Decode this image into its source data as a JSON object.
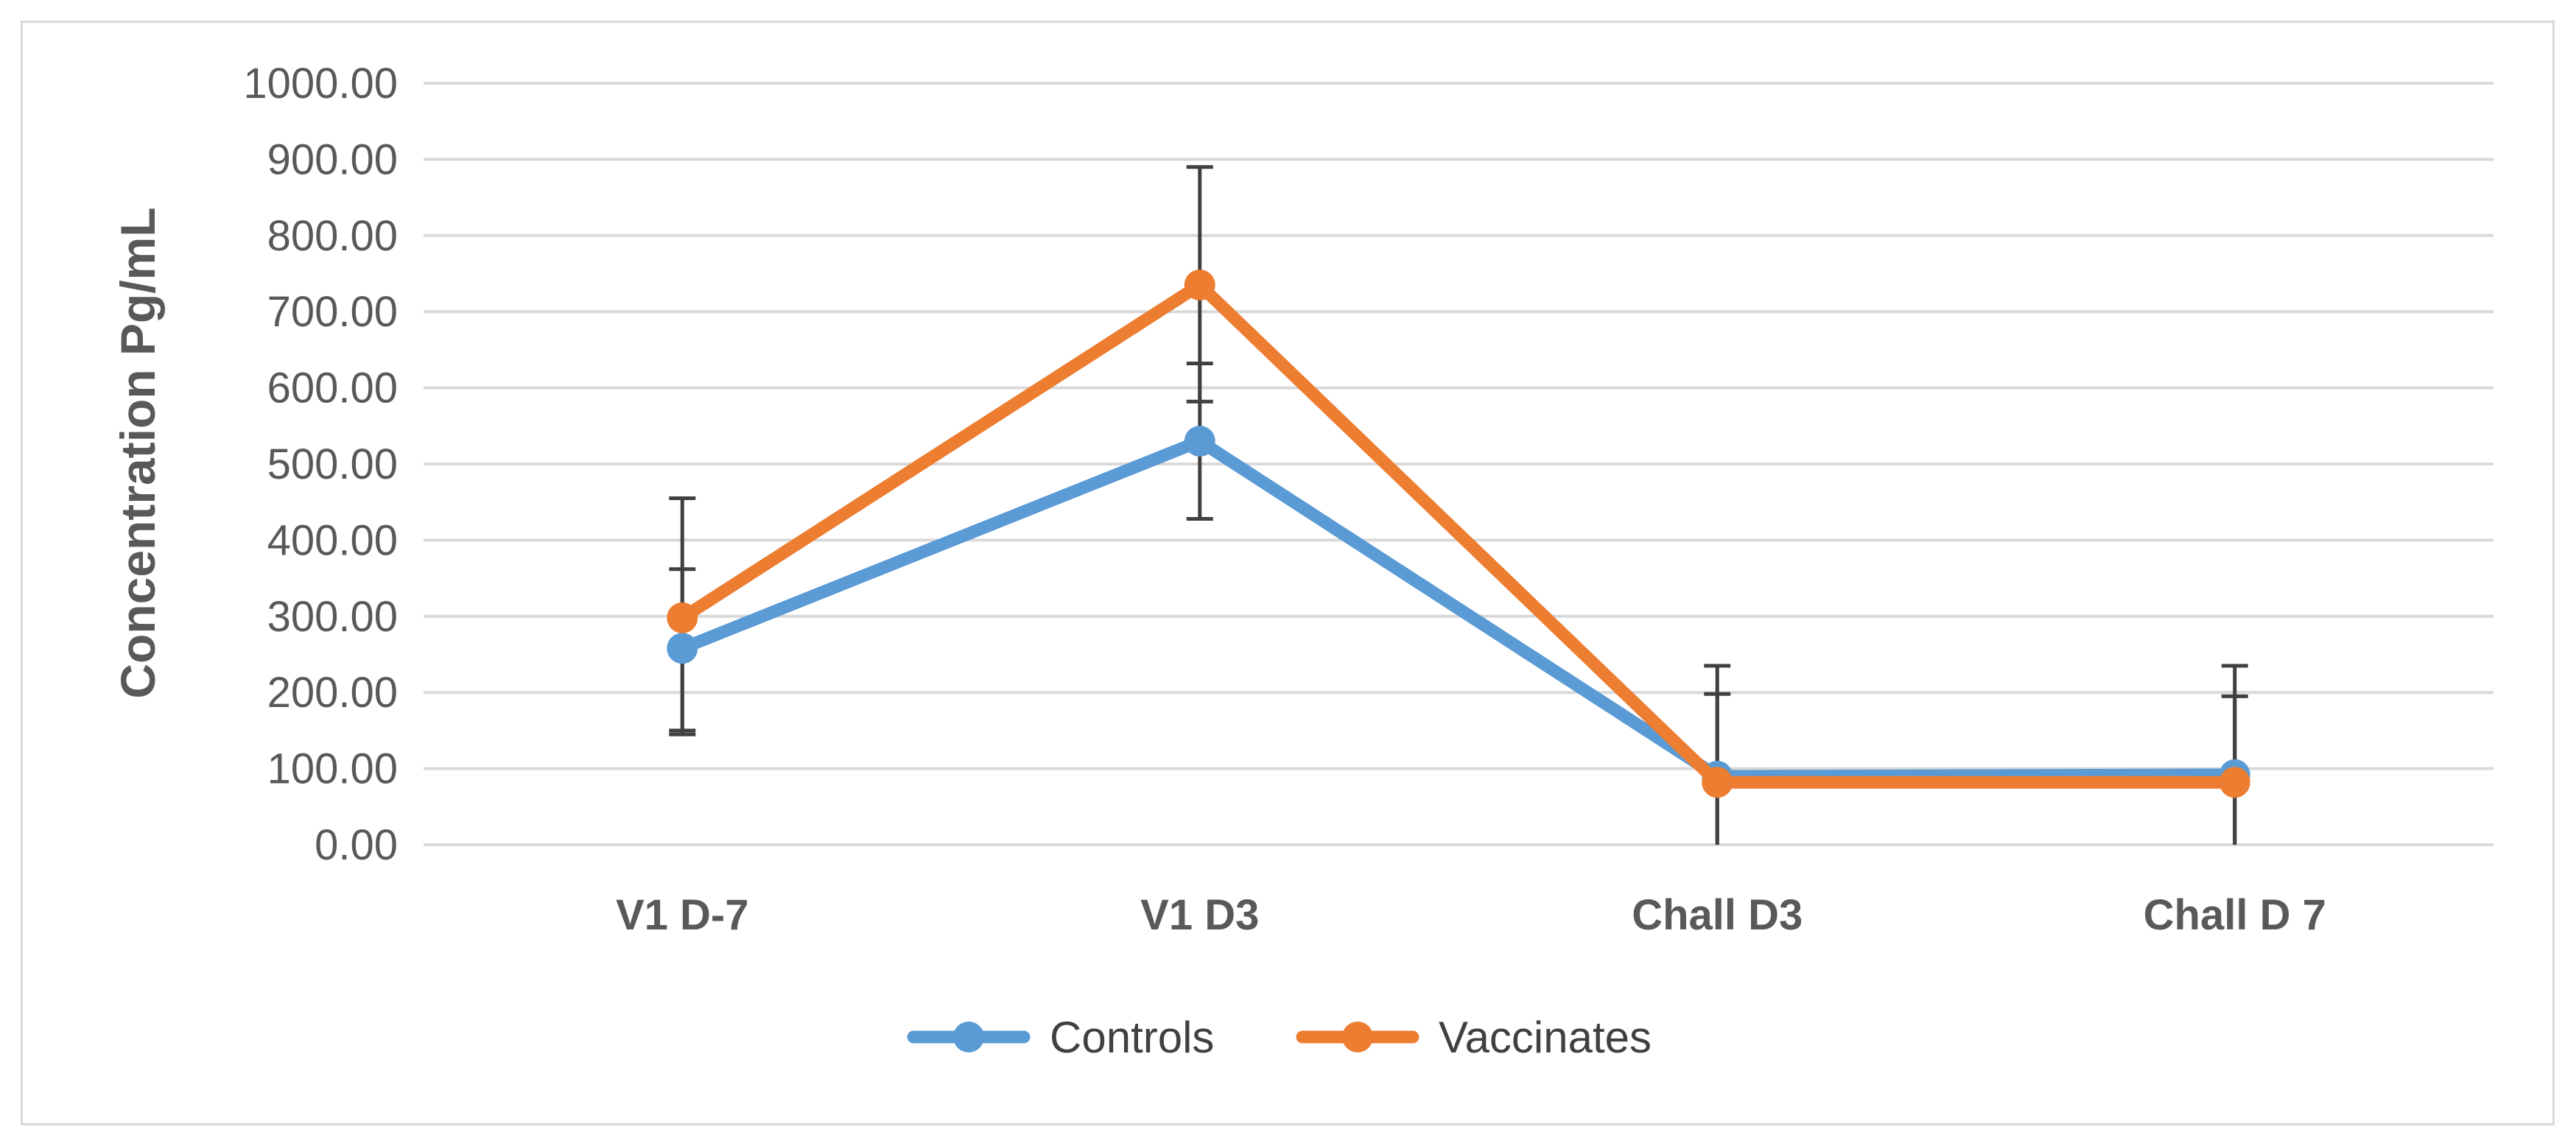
{
  "chart_data": {
    "type": "line",
    "title": "",
    "xlabel": "",
    "ylabel": "Concentration Pg/mL",
    "ylim": [
      0,
      1000
    ],
    "yticks": [
      0,
      100,
      200,
      300,
      400,
      500,
      600,
      700,
      800,
      900,
      1000
    ],
    "ytick_labels": [
      "0.00",
      "100.00",
      "200.00",
      "300.00",
      "400.00",
      "500.00",
      "600.00",
      "700.00",
      "800.00",
      "900.00",
      "1000.00"
    ],
    "grid": true,
    "legend_position": "bottom",
    "categories": [
      "V1 D-7",
      "V1 D3",
      "Chall D3",
      "Chall D 7"
    ],
    "series": [
      {
        "name": "Controls",
        "color": "#5b9bd5",
        "values": [
          258,
          530,
          90,
          92
        ],
        "error_low": [
          145,
          428,
          0,
          0
        ],
        "error_high": [
          362,
          632,
          198,
          195
        ]
      },
      {
        "name": "Vaccinates",
        "color": "#ed7d31",
        "values": [
          298,
          735,
          82,
          82
        ],
        "error_low": [
          150,
          582,
          0,
          0
        ],
        "error_high": [
          455,
          890,
          235,
          235
        ]
      }
    ]
  }
}
